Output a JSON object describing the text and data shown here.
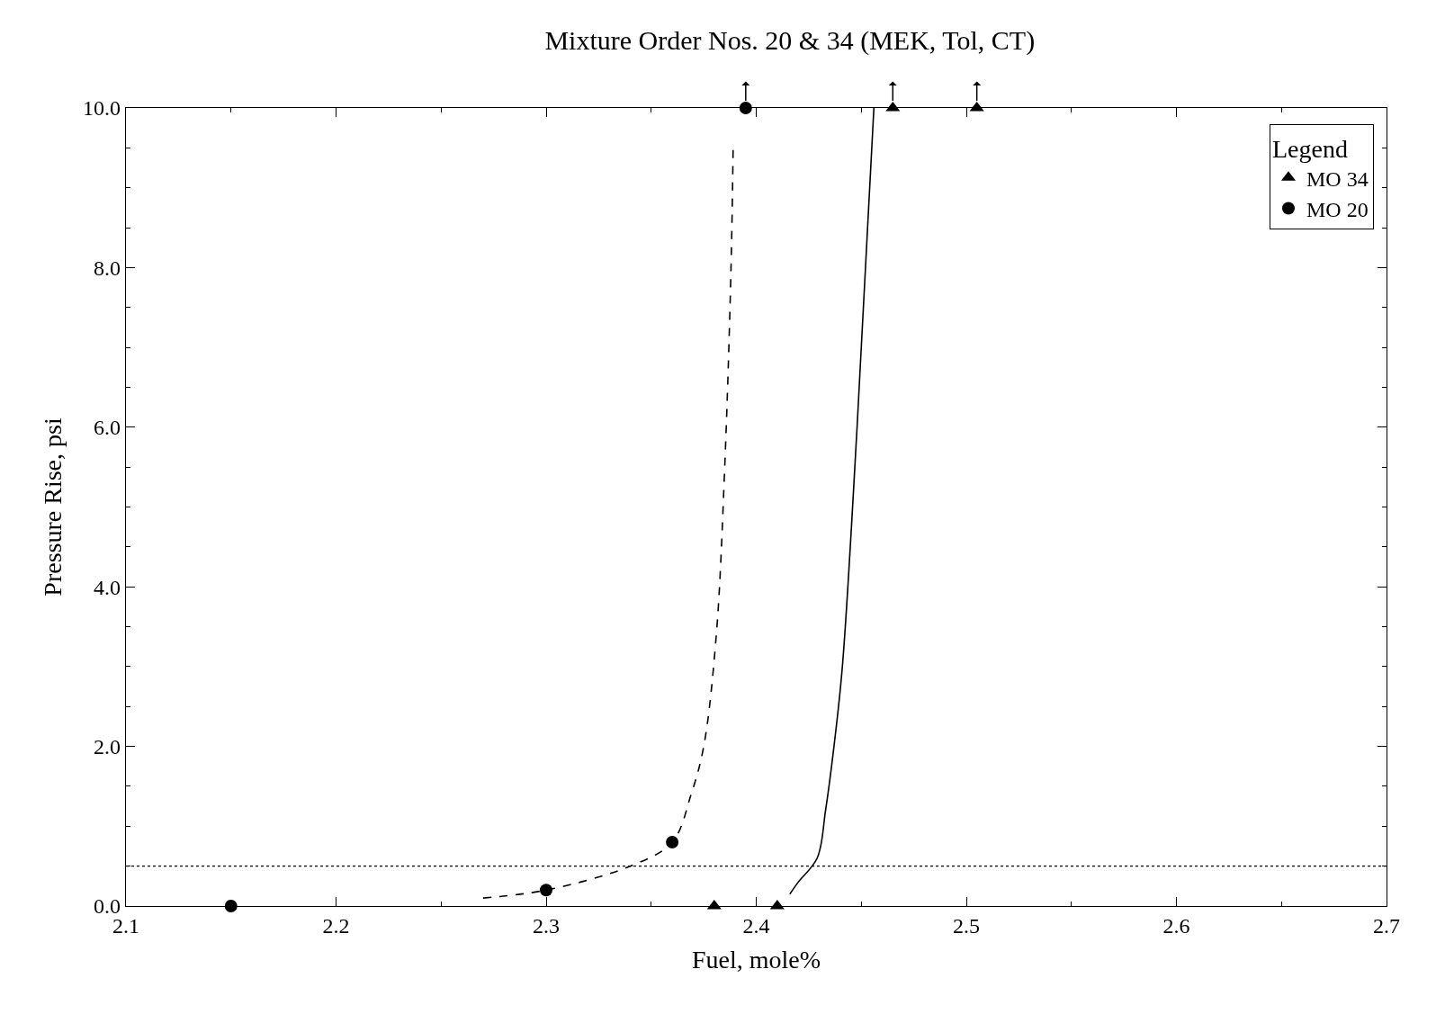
{
  "chart_data": {
    "type": "scatter",
    "title": "Mixture Order Nos. 20 & 34 (MEK, Tol, CT)",
    "xlabel": "Fuel, mole%",
    "ylabel": "Pressure Rise, psi",
    "legend_title": "Legend",
    "xlim": [
      2.1,
      2.7
    ],
    "ylim": [
      0,
      10
    ],
    "xticks": [
      2.1,
      2.2,
      2.3,
      2.4,
      2.5,
      2.6,
      2.7
    ],
    "yticks": [
      {
        "value": 0,
        "label": "0.0"
      },
      {
        "value": 2,
        "label": "2.0"
      },
      {
        "value": 4,
        "label": "4.0"
      },
      {
        "value": 6,
        "label": "6.0"
      },
      {
        "value": 8,
        "label": "8.0"
      },
      {
        "value": 10,
        "label": "10.0"
      }
    ],
    "legend": "top right",
    "series": [
      {
        "name": "MO 34",
        "color": "#000000",
        "marker": "triangle",
        "x": [
          2.38,
          2.41,
          2.465,
          2.505
        ],
        "values": [
          0,
          0,
          10,
          10
        ]
      },
      {
        "name": "MO 20",
        "color": "#000000",
        "marker": "circle",
        "x": [
          2.15,
          2.3,
          2.36,
          2.395
        ],
        "values": [
          0,
          0.2,
          0.8,
          10
        ]
      },
      {
        "type": "line",
        "color": "#000000",
        "line_style": "dashed",
        "marker": "none",
        "x": [
          2.27,
          2.3,
          2.34,
          2.36,
          2.369,
          2.375,
          2.381,
          2.385,
          2.388,
          2.389
        ],
        "values": [
          0.1,
          0.2,
          0.5,
          0.8,
          1.4,
          2.0,
          3.4,
          5.5,
          8.0,
          9.5
        ]
      },
      {
        "type": "line",
        "color": "#000000",
        "line_style": "solid",
        "marker": "none",
        "x": [
          2.416,
          2.42,
          2.429,
          2.433,
          2.437,
          2.441,
          2.448,
          2.456
        ],
        "values": [
          0.15,
          0.3,
          0.6,
          1.2,
          2.0,
          3.0,
          6.0,
          10.0
        ]
      }
    ],
    "ref_lines": [
      {
        "axis": "y",
        "value": 0.5,
        "line_style": "dotted",
        "color": "#000000"
      }
    ]
  }
}
